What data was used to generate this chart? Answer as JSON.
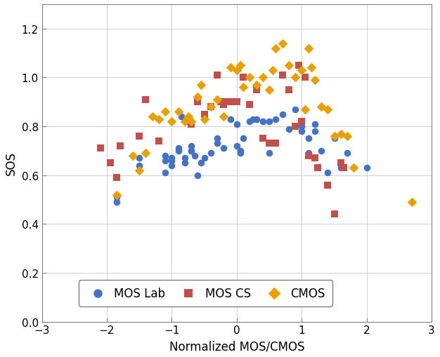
{
  "mos_lab_x": [
    -1.85,
    -1.85,
    -1.85,
    -1.5,
    -1.5,
    -1.1,
    -1.1,
    -1.1,
    -1.0,
    -1.0,
    -1.0,
    -0.9,
    -0.9,
    -0.85,
    -0.8,
    -0.8,
    -0.7,
    -0.7,
    -0.7,
    -0.65,
    -0.6,
    -0.55,
    -0.5,
    -0.4,
    -0.3,
    -0.3,
    -0.2,
    -0.1,
    0.0,
    0.0,
    0.05,
    0.05,
    0.1,
    0.2,
    0.25,
    0.3,
    0.4,
    0.5,
    0.5,
    0.6,
    0.7,
    0.8,
    0.9,
    1.0,
    1.0,
    1.1,
    1.1,
    1.2,
    1.2,
    1.3,
    1.4,
    1.5,
    1.6,
    1.7,
    2.0
  ],
  "mos_lab_y": [
    0.49,
    0.51,
    0.52,
    0.64,
    0.67,
    0.61,
    0.66,
    0.68,
    0.64,
    0.66,
    0.67,
    0.7,
    0.71,
    0.84,
    0.65,
    0.67,
    0.7,
    0.7,
    0.72,
    0.68,
    0.6,
    0.65,
    0.67,
    0.69,
    0.73,
    0.75,
    0.71,
    0.83,
    0.72,
    0.81,
    0.69,
    0.7,
    0.75,
    0.82,
    0.83,
    0.83,
    0.82,
    0.69,
    0.82,
    0.83,
    0.85,
    0.79,
    0.87,
    0.78,
    0.8,
    0.69,
    0.75,
    0.78,
    0.81,
    0.7,
    0.61,
    0.75,
    0.63,
    0.69,
    0.63
  ],
  "mos_cs_x": [
    -2.1,
    -1.95,
    -1.85,
    -1.8,
    -1.5,
    -1.4,
    -1.2,
    -0.75,
    -0.7,
    -0.6,
    -0.5,
    -0.4,
    -0.3,
    -0.25,
    -0.2,
    -0.15,
    -0.1,
    0.0,
    0.1,
    0.2,
    0.3,
    0.4,
    0.5,
    0.6,
    0.7,
    0.8,
    0.9,
    0.95,
    1.0,
    1.05,
    1.1,
    1.2,
    1.25,
    1.4,
    1.5,
    1.6,
    1.65
  ],
  "mos_cs_y": [
    0.71,
    0.65,
    0.59,
    0.72,
    0.76,
    0.91,
    0.74,
    0.82,
    0.81,
    0.9,
    0.85,
    0.88,
    1.01,
    0.9,
    0.89,
    0.9,
    0.9,
    0.9,
    1.0,
    0.89,
    0.95,
    0.75,
    0.73,
    0.73,
    1.01,
    0.95,
    0.8,
    1.05,
    0.82,
    1.0,
    0.68,
    0.67,
    0.63,
    0.56,
    0.44,
    0.65,
    0.63
  ],
  "cmos_x": [
    -1.85,
    -1.6,
    -1.5,
    -1.4,
    -1.3,
    -1.2,
    -1.1,
    -1.0,
    -0.9,
    -0.8,
    -0.75,
    -0.7,
    -0.6,
    -0.55,
    -0.5,
    -0.4,
    -0.3,
    -0.2,
    -0.1,
    0.0,
    0.05,
    0.1,
    0.2,
    0.3,
    0.4,
    0.5,
    0.55,
    0.6,
    0.7,
    0.8,
    0.9,
    1.0,
    1.05,
    1.1,
    1.15,
    1.2,
    1.3,
    1.4,
    1.5,
    1.6,
    1.7,
    1.8,
    2.7
  ],
  "cmos_y": [
    0.52,
    0.68,
    0.62,
    0.69,
    0.84,
    0.83,
    0.86,
    0.82,
    0.86,
    0.82,
    0.84,
    0.82,
    0.92,
    0.97,
    0.83,
    0.88,
    0.91,
    0.84,
    1.04,
    1.03,
    1.05,
    0.96,
    1.0,
    0.97,
    1.0,
    0.95,
    1.03,
    1.12,
    1.14,
    1.05,
    1.0,
    1.03,
    0.87,
    1.12,
    1.04,
    0.99,
    0.88,
    0.87,
    0.76,
    0.77,
    0.76,
    0.63,
    0.49
  ],
  "xlabel": "Normalized MOS/CMOS",
  "ylabel": "SOS",
  "xlim": [
    -3,
    3
  ],
  "ylim": [
    0,
    1.3
  ],
  "xticks": [
    -3,
    -2,
    -1,
    0,
    1,
    2,
    3
  ],
  "yticks": [
    0,
    0.2,
    0.4,
    0.6,
    0.8,
    1.0,
    1.2
  ],
  "mos_lab_color": "#4472C4",
  "mos_cs_color": "#C0504D",
  "cmos_color": "#E8A000",
  "legend_labels": [
    "MOS Lab",
    "MOS CS",
    "CMOS"
  ],
  "grid_color": "#D3D3D3",
  "marker_size": 48,
  "background_color": "#FFFFFF",
  "spine_color": "#808080"
}
